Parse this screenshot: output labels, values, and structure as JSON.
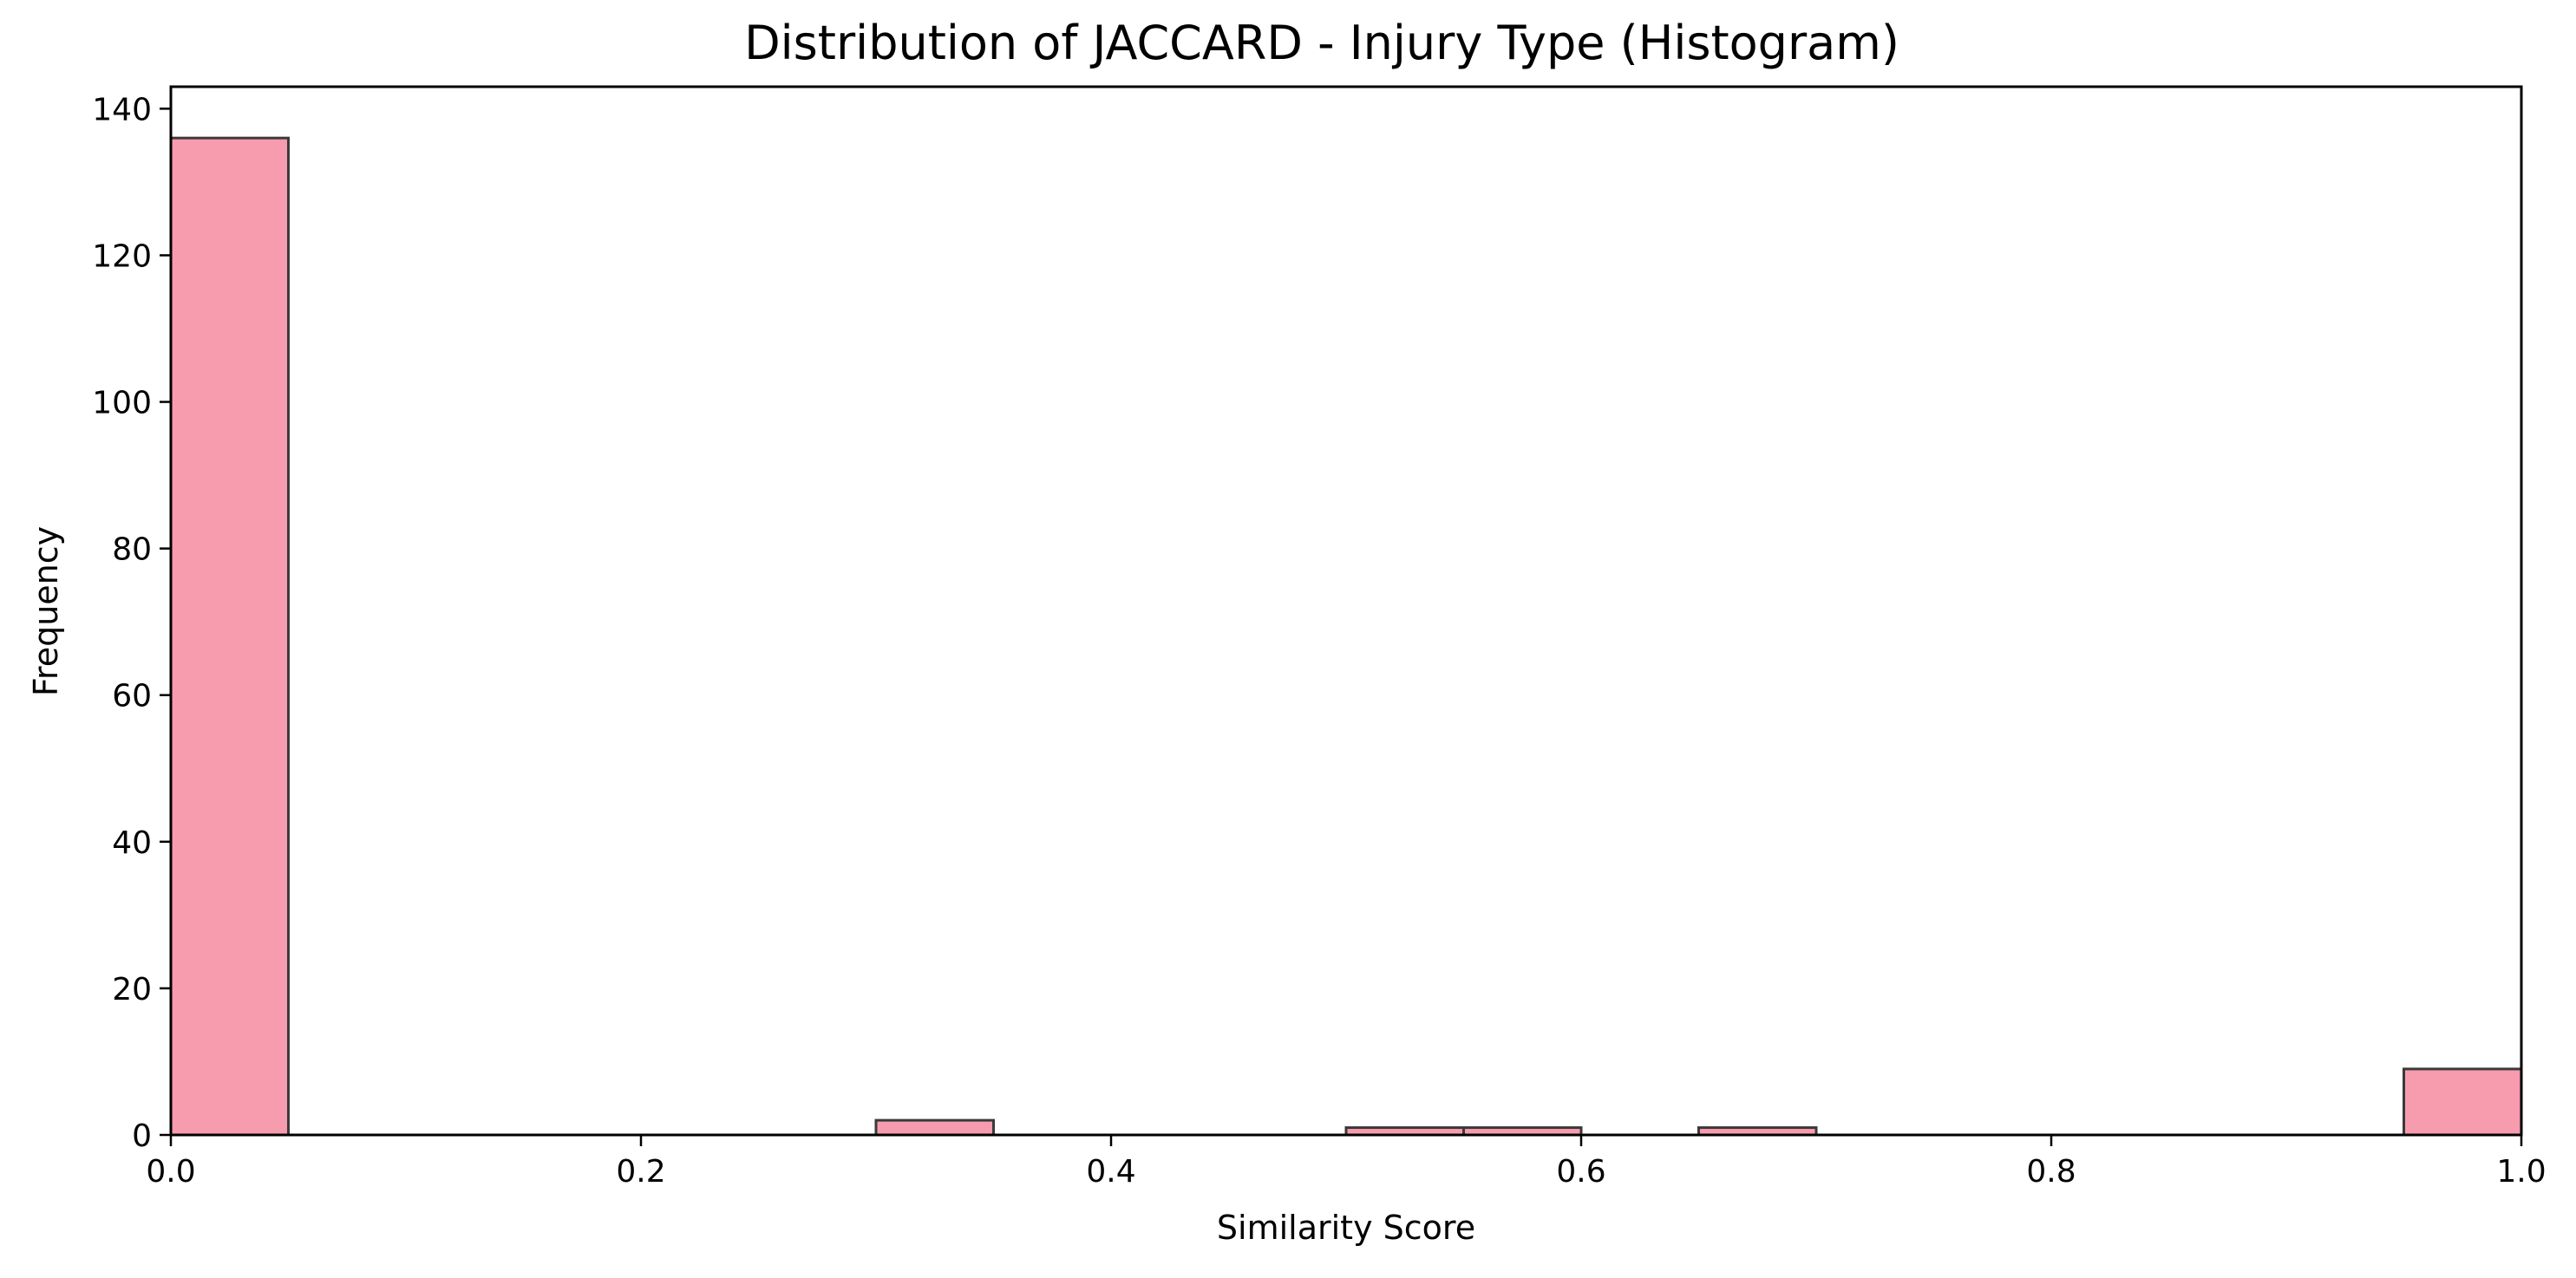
{
  "chart_data": {
    "type": "bar",
    "title": "Distribution of JACCARD - Injury Type (Histogram)",
    "xlabel": "Similarity Score",
    "ylabel": "Frequency",
    "xlim": [
      0.0,
      1.0
    ],
    "ylim": [
      0,
      143
    ],
    "xticks": [
      0.0,
      0.2,
      0.4,
      0.6,
      0.8,
      1.0
    ],
    "xtick_labels": [
      "0.0",
      "0.2",
      "0.4",
      "0.6",
      "0.8",
      "1.0"
    ],
    "yticks": [
      0,
      20,
      40,
      60,
      80,
      100,
      120,
      140
    ],
    "ytick_labels": [
      "0",
      "20",
      "40",
      "60",
      "80",
      "100",
      "120",
      "140"
    ],
    "grid": false,
    "bar_color": "#F79BAE",
    "edge_color": "#3a3a3a",
    "bins": [
      {
        "start": 0.0,
        "end": 0.05,
        "count": 136
      },
      {
        "start": 0.3,
        "end": 0.35,
        "count": 2
      },
      {
        "start": 0.5,
        "end": 0.55,
        "count": 1
      },
      {
        "start": 0.55,
        "end": 0.6,
        "count": 1
      },
      {
        "start": 0.65,
        "end": 0.7,
        "count": 1
      },
      {
        "start": 0.95,
        "end": 1.0,
        "count": 9
      }
    ]
  }
}
